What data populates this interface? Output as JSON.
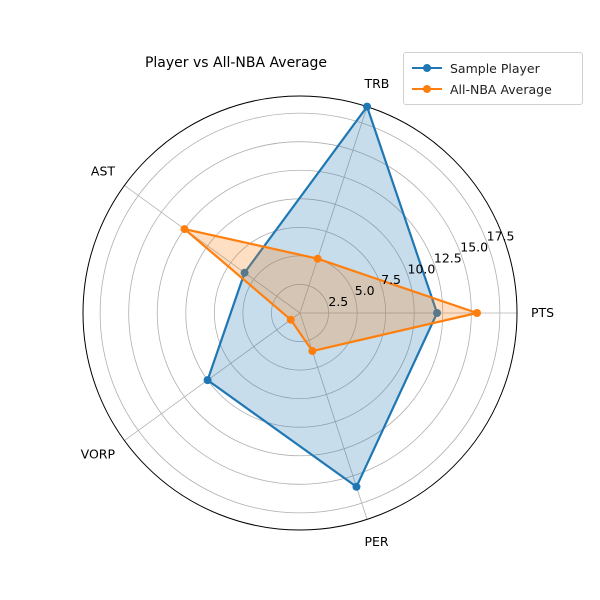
{
  "chart_data": {
    "type": "radar",
    "title": "Player vs All-NBA Average",
    "categories": [
      "PTS",
      "TRB",
      "AST",
      "VORP",
      "PER"
    ],
    "radial_ticks": [
      "2.5",
      "5.0",
      "7.5",
      "10.0",
      "12.5",
      "15.0",
      "17.5"
    ],
    "radial_tick_values": [
      2.5,
      5.0,
      7.5,
      10.0,
      12.5,
      15.0,
      17.5
    ],
    "rmax": 19,
    "grid": true,
    "legend_position": "top-right",
    "series": [
      {
        "name": "Sample Player",
        "values": [
          12,
          19,
          6,
          10,
          16
        ],
        "color": "#1f77b4"
      },
      {
        "name": "All-NBA Average",
        "values": [
          15.5,
          5,
          12.5,
          1,
          3.5
        ],
        "color": "#ff7f0e"
      }
    ]
  }
}
